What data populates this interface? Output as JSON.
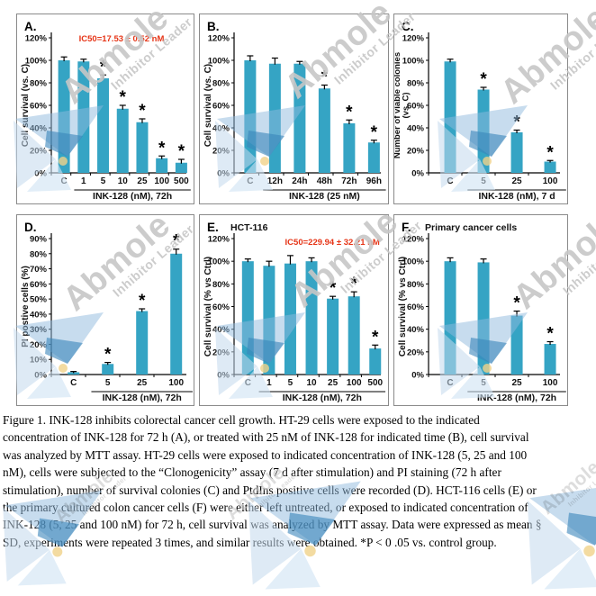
{
  "figure": {
    "caption_lines": [
      "Figure 1. INK-128 inhibits colorectal cancer cell growth. HT-29 cells were exposed to the indicated",
      "concentration of INK-128 for 72 h (A), or treated with 25 nM of INK-128 for indicated time (B), cell survival",
      "was analyzed by MTT assay. HT-29 cells were exposed to indicated concentration of INK-128 (5, 25 and 100",
      "nM), cells were subjected to the “Clonogenicity” assay (7 d after stimulation) and PI staining (72 h after",
      "stimulation), number of survival colonies (C) and PtdIns positive cells were recorded (D). HCT-116 cells (E) or",
      "the primary cultured colon cancer cells (F) were either left untreated, or exposed to indicated concentration of",
      "INK-128 (5, 25 and 100 nM) for 72 h, cell survival was analyzed by MTT assay. Data were expressed as mean §",
      "SD, experiments were repeated 3 times, and similar results were obtained. *P < 0 .05 vs. control group."
    ]
  },
  "watermark": {
    "brand": "Abmole",
    "tagline": "Inhibitor Leader",
    "text_color": "#c7c7c7"
  },
  "colors": {
    "bar": "#35a4c4",
    "annotation": "#e63517",
    "axis": "#000000"
  },
  "chart_data": [
    {
      "type": "bar",
      "panel": "A.",
      "title": "",
      "annotation": "IC50=17.53 ± 0.52 nM",
      "categories": [
        "C",
        "1",
        "5",
        "10",
        "25",
        "100",
        "500"
      ],
      "values": [
        100,
        99,
        84,
        57,
        45,
        13,
        9
      ],
      "errors": [
        3,
        2,
        3,
        3,
        3,
        2,
        3
      ],
      "sig": [
        0,
        0,
        1,
        1,
        1,
        1,
        1
      ],
      "ylabel": [
        "Cell survival  (vs. C)"
      ],
      "xlabel": "INK-128 (nM), 72h",
      "ylim": [
        0,
        120
      ],
      "ytick": 20
    },
    {
      "type": "bar",
      "panel": "B.",
      "title": "",
      "annotation": "",
      "categories": [
        "C",
        "12h",
        "24h",
        "48h",
        "72h",
        "96h"
      ],
      "values": [
        100,
        97,
        97,
        75,
        44,
        27
      ],
      "errors": [
        4,
        5,
        2,
        3,
        3,
        2
      ],
      "sig": [
        0,
        0,
        0,
        1,
        1,
        1
      ],
      "ylabel": [
        "Cell survival  (vs. C)"
      ],
      "xlabel": "INK-128 (25 nM)",
      "ylim": [
        0,
        120
      ],
      "ytick": 20
    },
    {
      "type": "bar",
      "panel": "C.",
      "title": "",
      "annotation": "",
      "categories": [
        "C",
        "5",
        "25",
        "100"
      ],
      "values": [
        99,
        74,
        36,
        10
      ],
      "errors": [
        2,
        2,
        2,
        1
      ],
      "sig": [
        0,
        1,
        1,
        1
      ],
      "ylabel": [
        "Number of viable colonies",
        "(vs. C)"
      ],
      "xlabel": "INK-128 (nM), 7 d",
      "ylim": [
        0,
        120
      ],
      "ytick": 20
    },
    {
      "type": "bar",
      "panel": "D.",
      "title": "",
      "annotation": "",
      "categories": [
        "C",
        "5",
        "25",
        "100"
      ],
      "values": [
        1.5,
        7,
        42,
        80
      ],
      "errors": [
        0.5,
        1,
        1.5,
        3
      ],
      "sig": [
        0,
        1,
        1,
        1
      ],
      "ylabel": [
        "PI postive cells (%)"
      ],
      "xlabel": "INK-128 (nM), 72h",
      "ylim": [
        0,
        90
      ],
      "ytick": 10
    },
    {
      "type": "bar",
      "panel": "E.",
      "title": "HCT-116",
      "annotation": "IC50=229.94 ± 32.21 nM",
      "categories": [
        "C",
        "1",
        "5",
        "10",
        "25",
        "100",
        "500"
      ],
      "values": [
        100,
        96,
        98,
        100,
        67,
        69,
        23
      ],
      "errors": [
        2,
        4,
        7,
        3,
        2,
        4,
        3
      ],
      "sig": [
        0,
        0,
        0,
        0,
        1,
        1,
        1
      ],
      "ylabel": [
        "Cell survival  (% vs Ctrl)"
      ],
      "xlabel": "INK-128 (nM), 72h",
      "ylim": [
        0,
        120
      ],
      "ytick": 20
    },
    {
      "type": "bar",
      "panel": "F.",
      "title": "Primary cancer cells",
      "annotation": "",
      "categories": [
        "C",
        "5",
        "25",
        "100"
      ],
      "values": [
        100,
        99,
        52,
        27
      ],
      "errors": [
        3,
        3,
        4,
        2
      ],
      "sig": [
        0,
        0,
        1,
        1
      ],
      "ylabel": [
        "Cell survival  (% vs  Ctrl)"
      ],
      "xlabel": "INK-128 (nM), 72h",
      "ylim": [
        0,
        120
      ],
      "ytick": 20
    }
  ]
}
